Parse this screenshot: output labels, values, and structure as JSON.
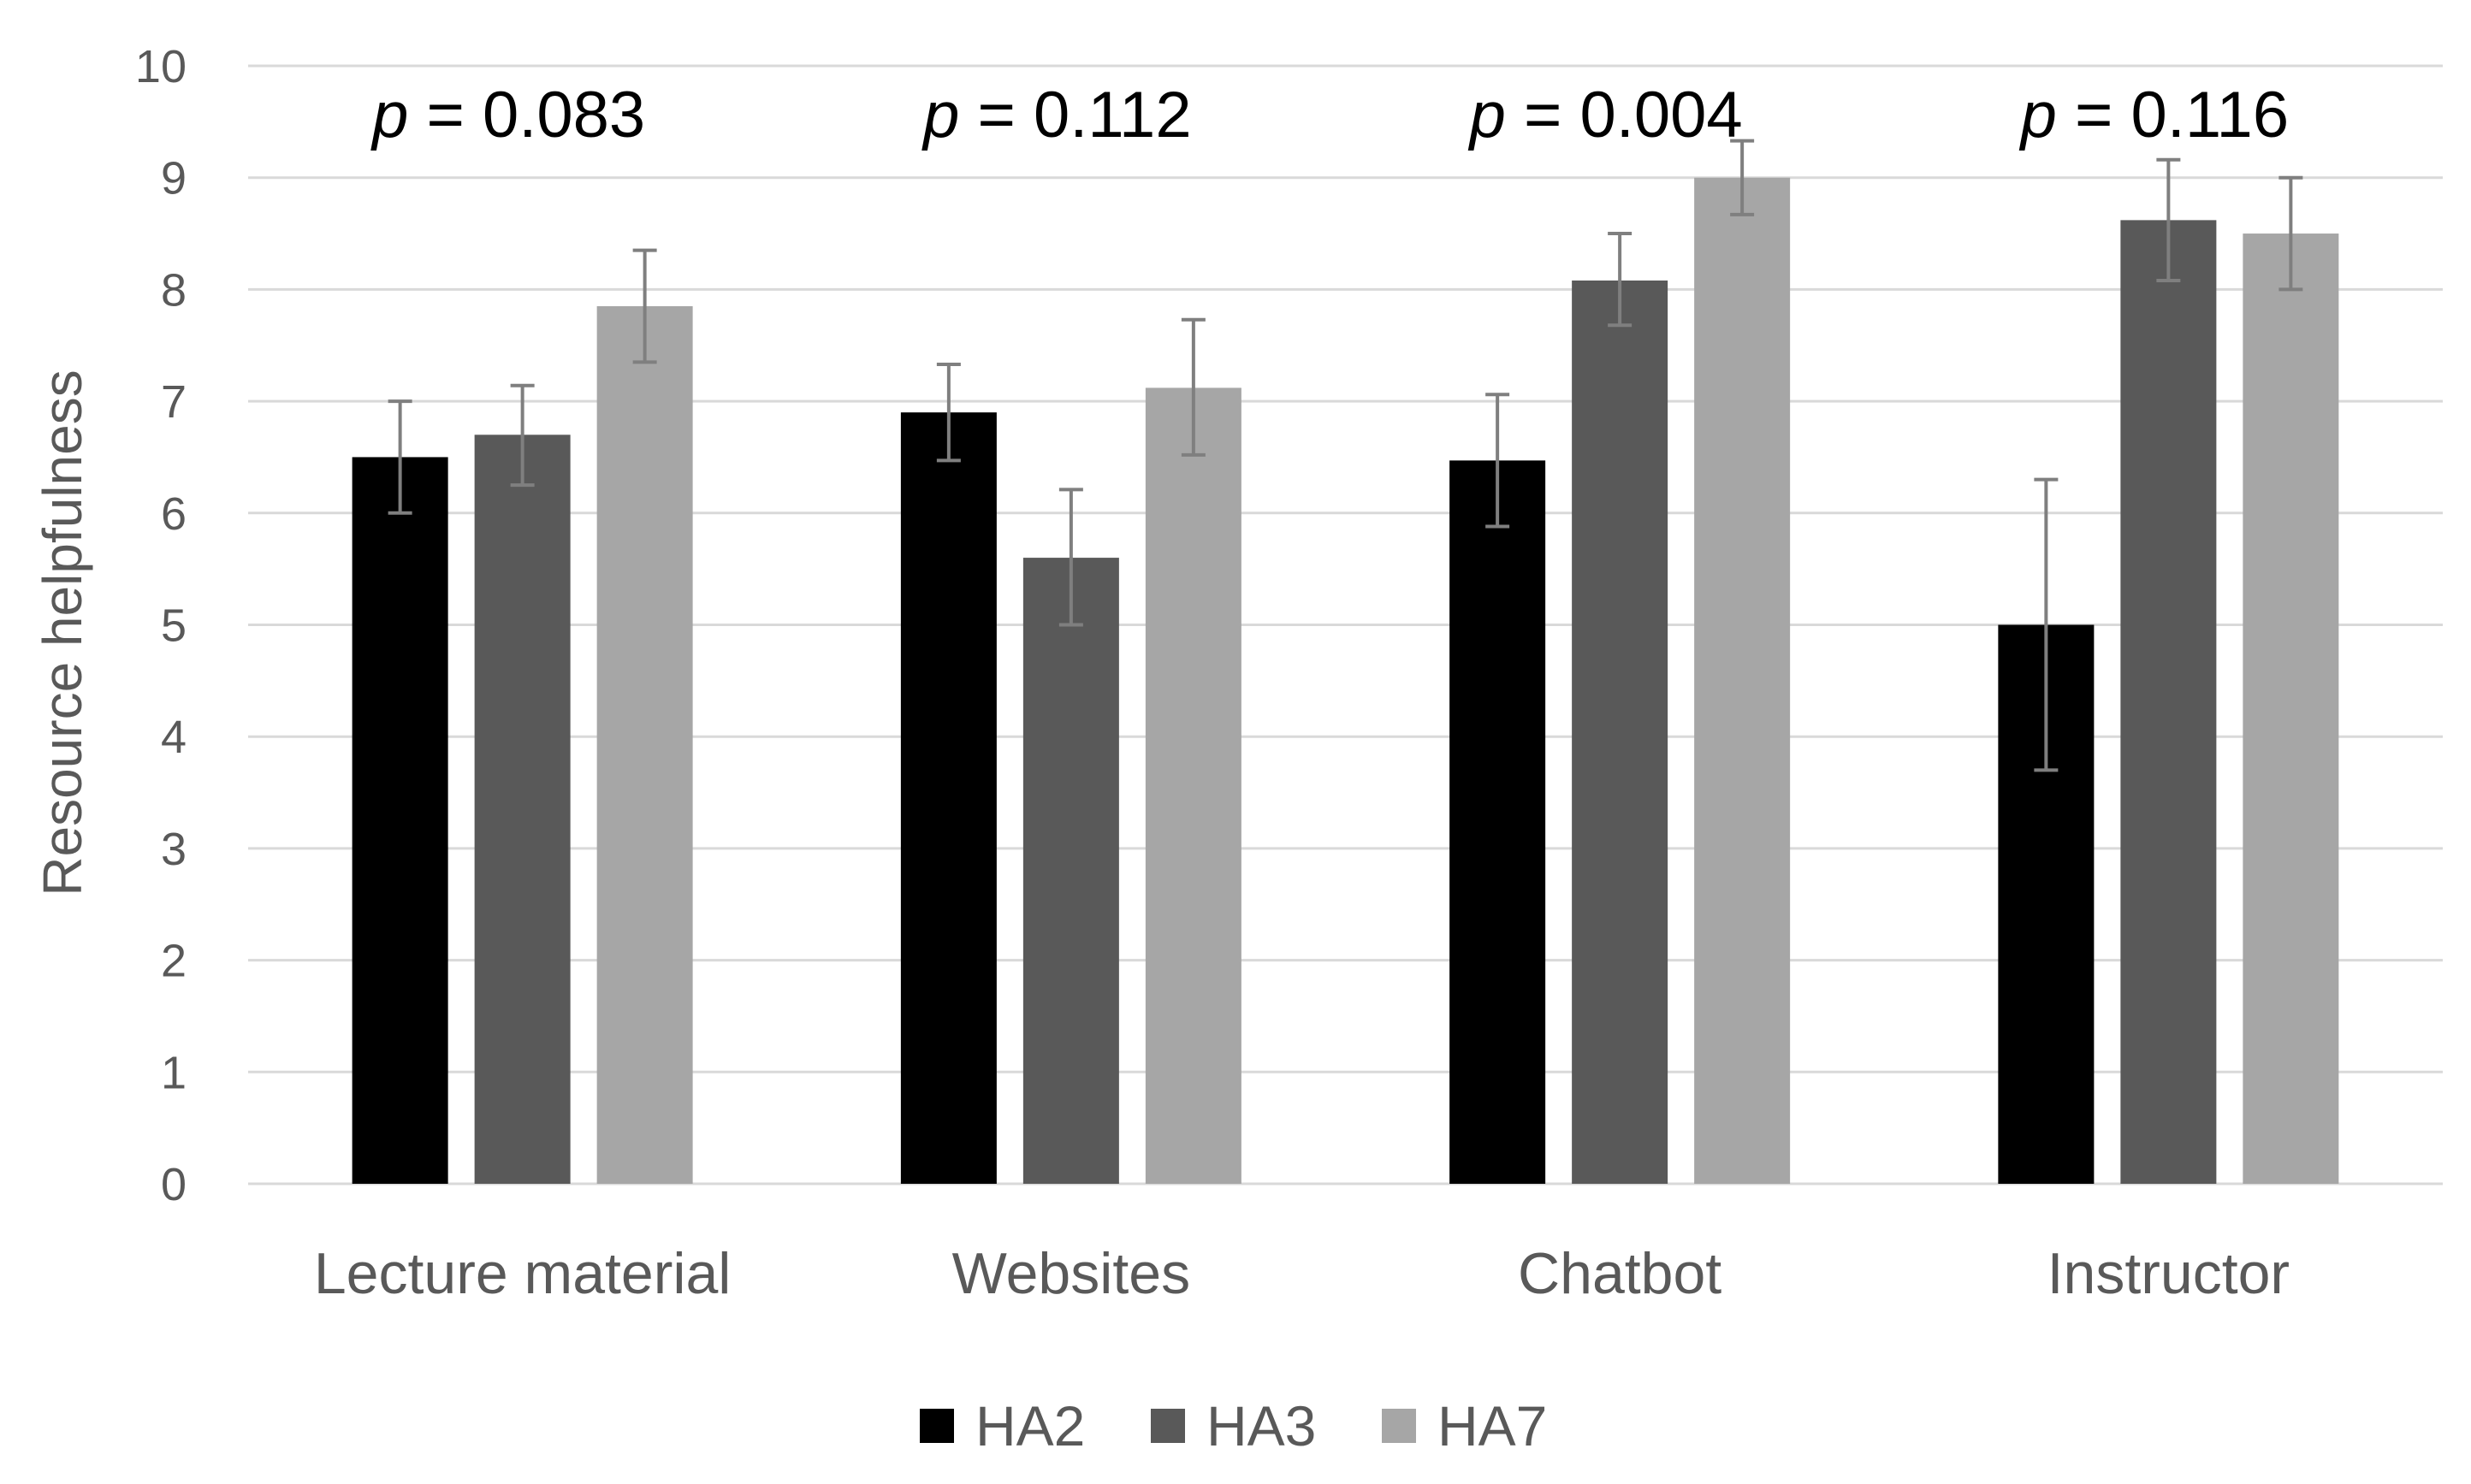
{
  "chart_data": {
    "type": "bar",
    "categories": [
      "Lecture material",
      "Websites",
      "Chatbot",
      "Instructor"
    ],
    "series": [
      {
        "name": "HA2",
        "color": "#000000",
        "values": [
          6.5,
          6.9,
          6.47,
          5.0
        ],
        "err_low": [
          6.0,
          6.47,
          5.88,
          3.7
        ],
        "err_high": [
          7.0,
          7.33,
          7.06,
          6.3
        ]
      },
      {
        "name": "HA3",
        "color": "#595959",
        "values": [
          6.7,
          5.6,
          8.08,
          8.62
        ],
        "err_low": [
          6.25,
          5.0,
          7.68,
          8.08
        ],
        "err_high": [
          7.14,
          6.21,
          8.5,
          9.16
        ]
      },
      {
        "name": "HA7",
        "color": "#a6a6a6",
        "values": [
          7.85,
          7.12,
          9.0,
          8.5
        ],
        "err_low": [
          7.35,
          6.52,
          8.67,
          8.0
        ],
        "err_high": [
          8.35,
          7.73,
          9.33,
          9.0
        ]
      }
    ],
    "ylabel": "Resource helpfulness",
    "xlabel": "",
    "ylim": [
      0,
      10
    ],
    "yticks": [
      "0",
      "1",
      "2",
      "3",
      "4",
      "5",
      "6",
      "7",
      "8",
      "9",
      "10"
    ],
    "annotations": [
      {
        "prefix": "p",
        "text": " = 0.083"
      },
      {
        "prefix": "p",
        "text": " = 0.112"
      },
      {
        "prefix": "p",
        "text": " = 0.004"
      },
      {
        "prefix": "p",
        "text": " = 0.116"
      }
    ],
    "legend": "bottom",
    "grid": true
  }
}
